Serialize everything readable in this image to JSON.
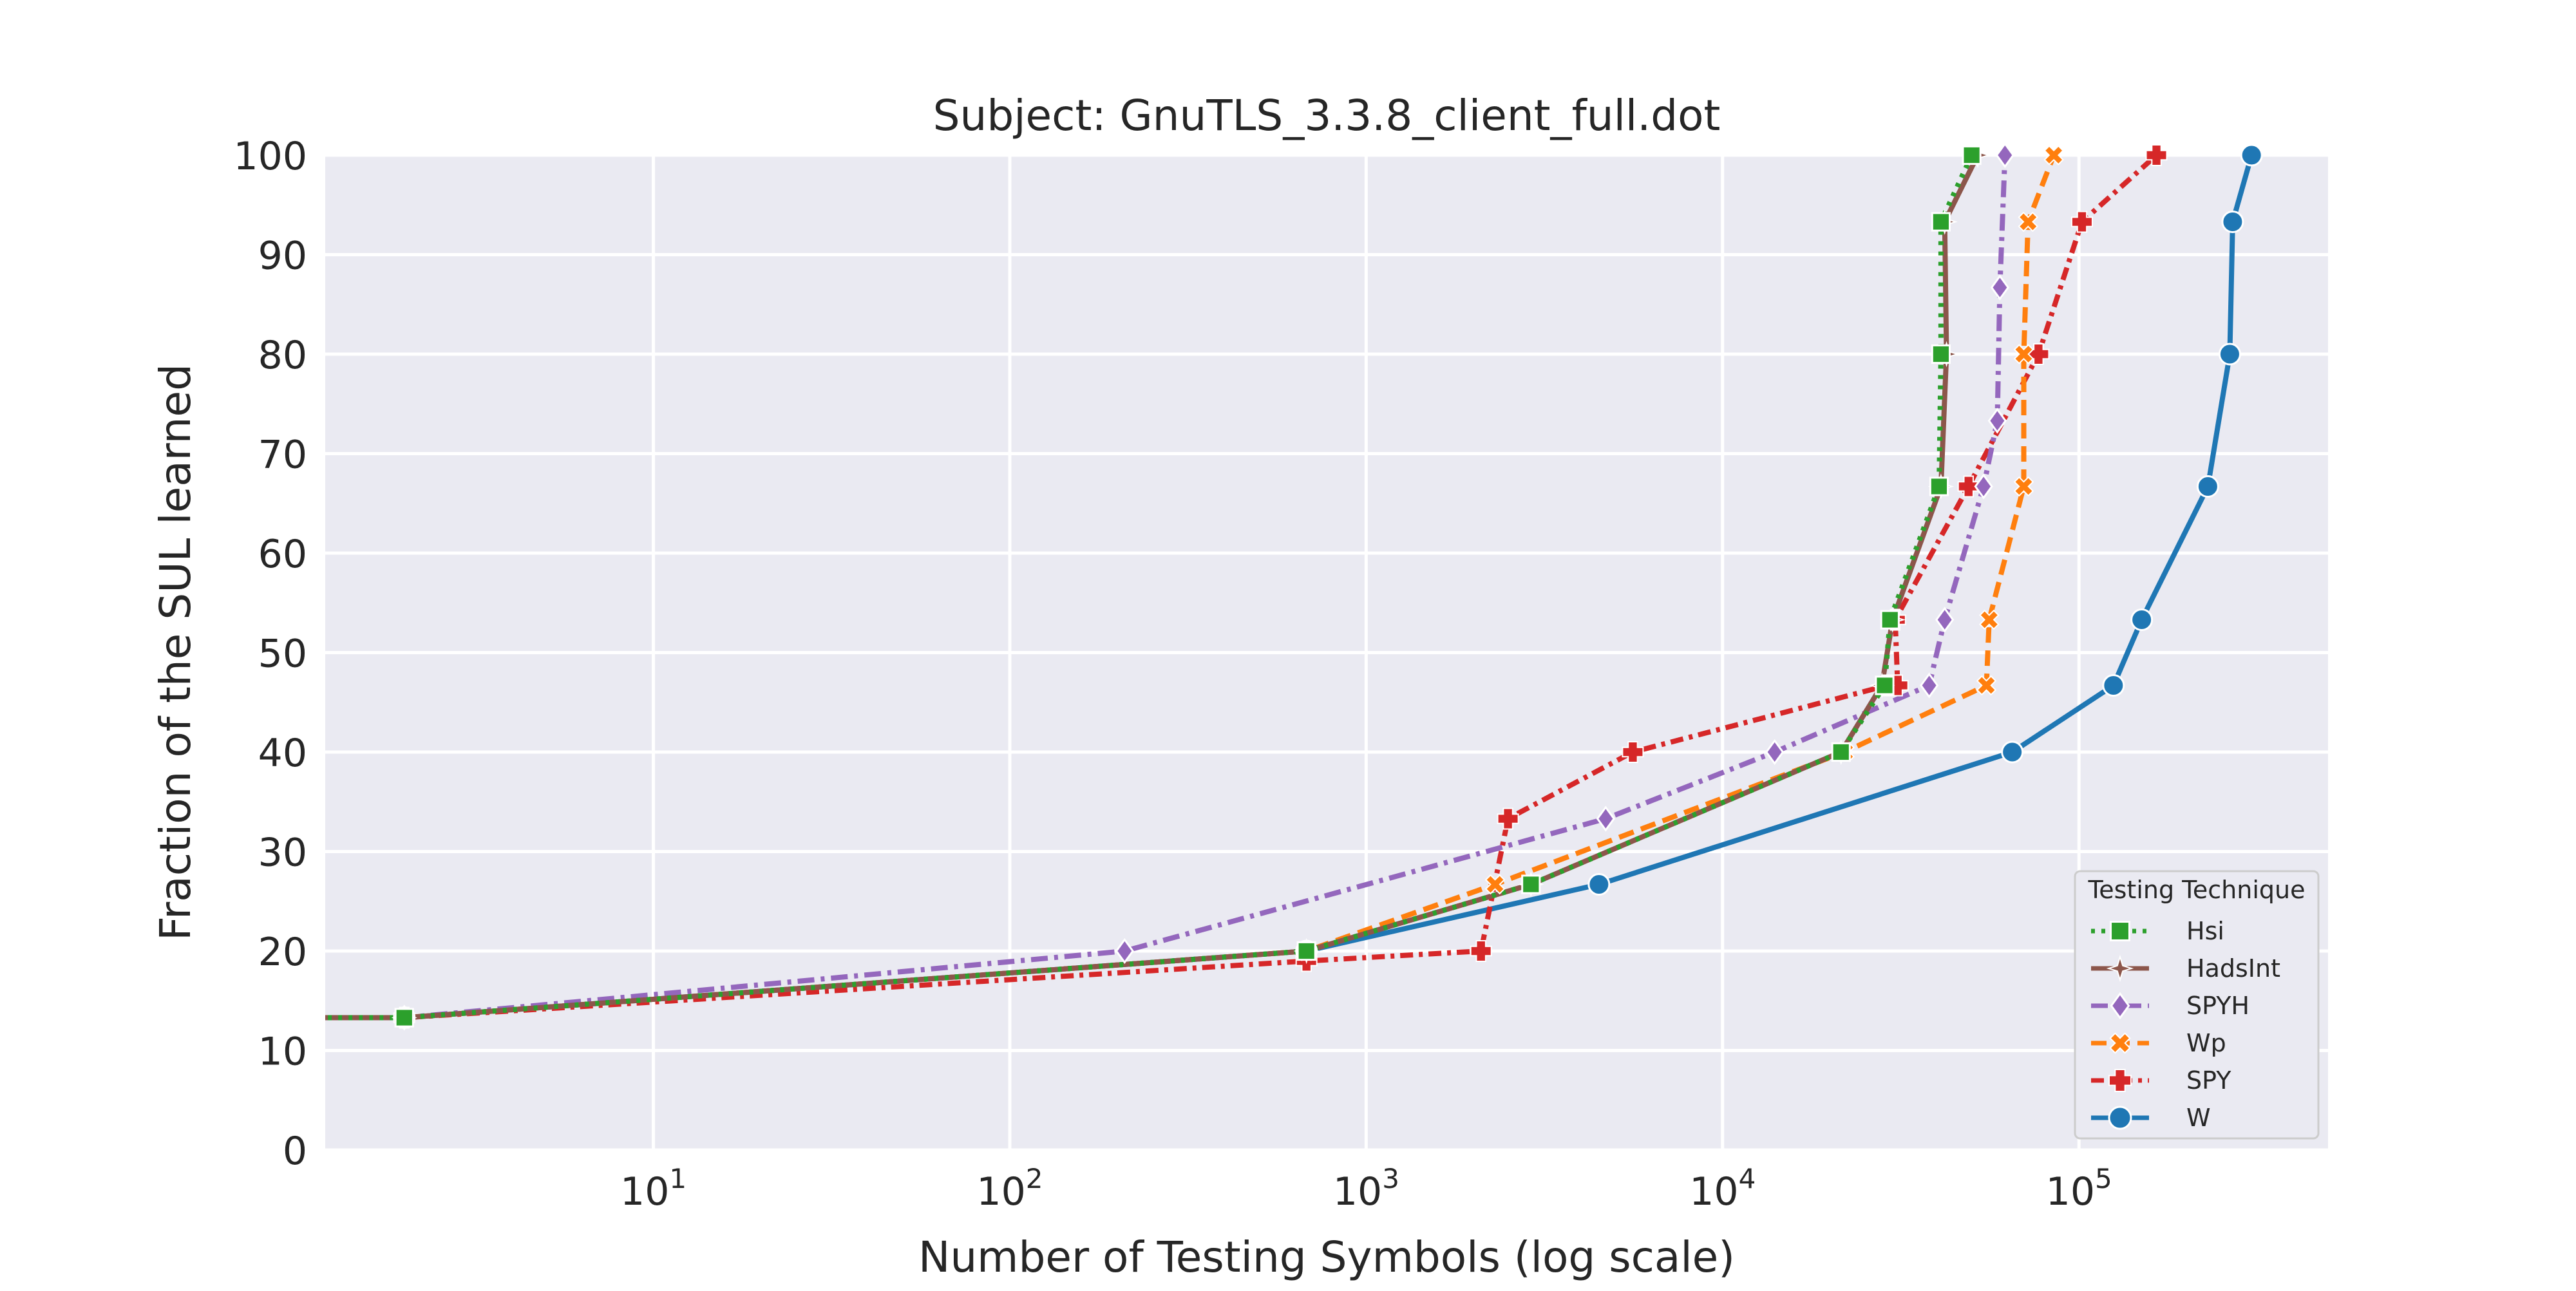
{
  "chart_data": {
    "type": "line",
    "title": "Subject: GnuTLS_3.3.8_client_full.dot",
    "xlabel": "Number of Testing Symbols (log scale)",
    "ylabel": "Fraction of the SUL learned",
    "x_scale": "log",
    "xlim": [
      1.2,
      500000
    ],
    "ylim": [
      0,
      100
    ],
    "x_ticks": [
      {
        "value": 10,
        "base": "10",
        "exp": "1"
      },
      {
        "value": 100,
        "base": "10",
        "exp": "2"
      },
      {
        "value": 1000,
        "base": "10",
        "exp": "3"
      },
      {
        "value": 10000,
        "base": "10",
        "exp": "4"
      },
      {
        "value": 100000,
        "base": "10",
        "exp": "5"
      }
    ],
    "y_ticks": [
      "0",
      "10",
      "20",
      "30",
      "40",
      "50",
      "60",
      "70",
      "80",
      "90",
      "100"
    ],
    "grid": true,
    "background": "#eaeaf2",
    "legend": {
      "title": "Testing Technique",
      "position": "bottom-right"
    },
    "series": [
      {
        "name": "W",
        "color": "#1f77b4",
        "dash": "solid",
        "marker": "circle",
        "x": [
          1,
          2,
          680,
          4500,
          65000,
          125000,
          150000,
          230000,
          265000,
          270000,
          305000
        ],
        "y": [
          13.3,
          13.3,
          20,
          26.7,
          40,
          46.7,
          53.3,
          66.7,
          80,
          93.3,
          100
        ]
      },
      {
        "name": "SPY",
        "color": "#d62728",
        "dash": "dashdot-dense",
        "marker": "plus",
        "x": [
          1,
          2,
          680,
          2100,
          2500,
          5600,
          29000,
          31000,
          30500,
          49000,
          77000,
          102000,
          165000
        ],
        "y": [
          13.3,
          13.3,
          19,
          20,
          33.3,
          40,
          46.7,
          46.7,
          53.3,
          66.7,
          80,
          93.3,
          100
        ]
      },
      {
        "name": "Wp",
        "color": "#ff7f0e",
        "dash": "dashed",
        "marker": "x",
        "x": [
          1,
          2,
          680,
          2300,
          22000,
          55000,
          56000,
          70000,
          70000,
          72000,
          85000
        ],
        "y": [
          13.3,
          13.3,
          20,
          26.7,
          40,
          46.7,
          53.3,
          66.7,
          80,
          93.3,
          100
        ]
      },
      {
        "name": "SPYH",
        "color": "#9467bd",
        "dash": "dashdot",
        "marker": "diamond",
        "x": [
          1,
          2,
          210,
          4700,
          14000,
          38000,
          42000,
          54000,
          59000,
          60000,
          62000
        ],
        "y": [
          13.3,
          13.3,
          20,
          33.3,
          40,
          46.7,
          53.3,
          66.7,
          73.3,
          86.7,
          100
        ]
      },
      {
        "name": "HadsInt",
        "color": "#8c564b",
        "dash": "solid",
        "marker": "star",
        "x": [
          1,
          2,
          680,
          2900,
          21500,
          28000,
          30000,
          41000,
          42500,
          42000,
          52000
        ],
        "y": [
          13.3,
          13.3,
          20,
          26.7,
          40,
          46.7,
          53.3,
          66.7,
          80,
          93.3,
          100
        ]
      },
      {
        "name": "Hsi",
        "color": "#2ca02c",
        "dash": "dotted",
        "marker": "square",
        "x": [
          1,
          2,
          680,
          2900,
          21500,
          28500,
          29500,
          40500,
          41000,
          41000,
          50000
        ],
        "y": [
          13.3,
          13.3,
          20,
          26.7,
          40,
          46.7,
          53.3,
          66.7,
          80,
          93.3,
          100
        ]
      }
    ],
    "legend_order": [
      "Hsi",
      "HadsInt",
      "SPYH",
      "Wp",
      "SPY",
      "W"
    ]
  }
}
